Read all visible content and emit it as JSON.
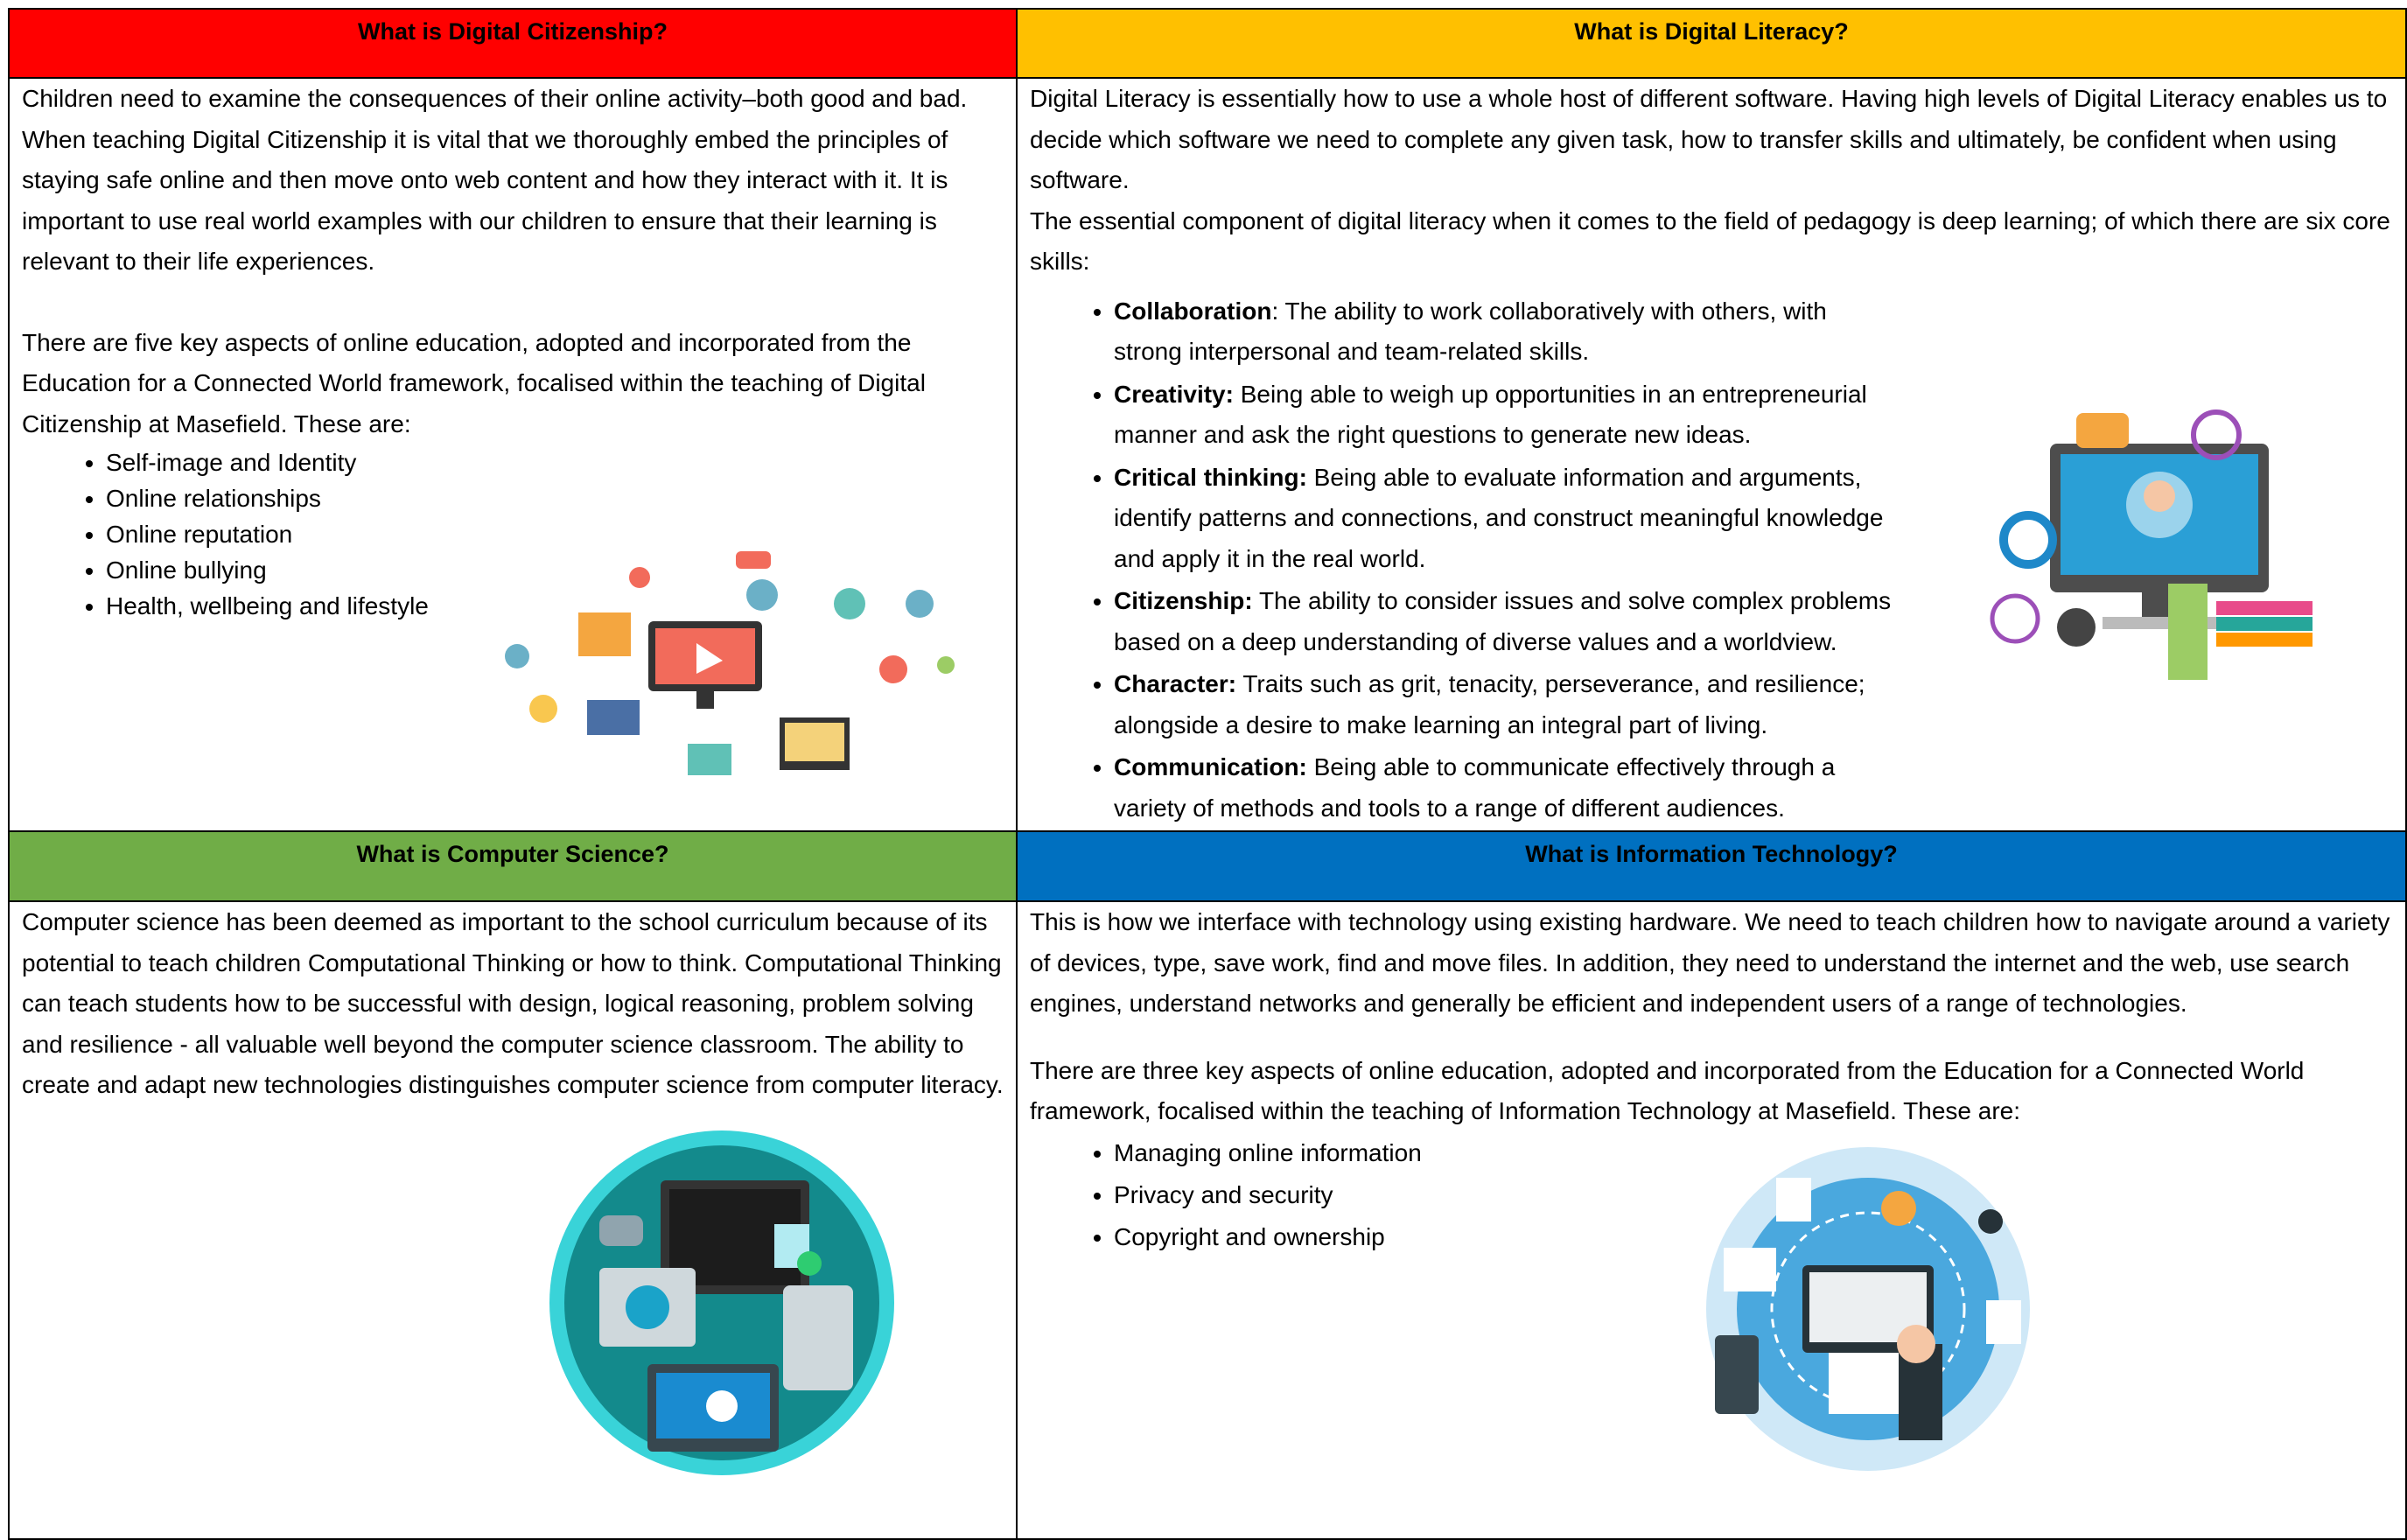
{
  "panels": [
    {
      "title": "What is Digital Citizenship?",
      "paragraphs": [
        "Children need to examine the consequences of their online activity–both good and bad. When teaching Digital Citizenship it is vital that we thoroughly embed the principles of staying safe online and then move onto web content and how they interact with it.  It is important to use real world examples with our children to ensure that their learning is relevant to their life experiences.",
        "There are five key aspects of online education, adopted and incorporated from the Education for a Connected World framework, focalised within the teaching of Digital Citizenship at Masefield. These are:"
      ],
      "list": [
        "Self-image and Identity",
        "Online relationships",
        "Online reputation",
        "Online bullying",
        "Health, wellbeing and lifestyle"
      ]
    },
    {
      "title": "What is Digital Literacy?",
      "paragraphs": [
        "Digital Literacy is essentially how to use a whole host of different software. Having high levels of Digital Literacy enables us to decide which software we need to complete any given task, how to transfer skills and ultimately, be confident when using software.",
        "The essential component of digital literacy when it comes to the field of pedagogy is deep learning; of which there are six core skills:"
      ],
      "list": [
        {
          "term": "Collaboration",
          "text": ": The ability to work collaboratively with others, with strong interpersonal and team-related skills."
        },
        {
          "term": "Creativity:",
          "text": " Being able to weigh up opportunities in an entrepreneurial manner and ask the right questions to generate new ideas."
        },
        {
          "term": "Critical thinking:",
          "text": " Being able to evaluate information and arguments, identify patterns and connections, and construct meaningful knowledge and apply it in the real world."
        },
        {
          "term": "Citizenship:",
          "text": " The ability to consider issues and solve complex problems based on a deep understanding of diverse values and a worldview."
        },
        {
          "term": "Character:",
          "text": " Traits such as grit, tenacity, perseverance, and resilience; alongside a desire to make learning an integral part of living."
        },
        {
          "term": "Communication:",
          "text": " Being able to communicate effectively through a variety of methods and tools to a range of different audiences."
        }
      ]
    },
    {
      "title": "What is Computer Science?",
      "paragraphs": [
        "Computer science has been deemed as important to the school curriculum because of its potential to teach children Computational Thinking or how to think. Computational Thinking can teach students how to be successful with design, logical reasoning, problem solving and resilience - all valuable well beyond the computer science classroom. The ability to create and adapt new technologies distinguishes computer science from computer literacy."
      ],
      "list": []
    },
    {
      "title": "What is Information Technology?",
      "paragraphs": [
        "This is how we interface with technology using existing hardware. We need to teach children how to navigate around a variety of devices, type, save work, find and move files. In addition, they need to understand the internet and the web, use search engines, understand networks and generally be efficient and independent users of a range of technologies.",
        "There are three key aspects of online education, adopted and incorporated from the Education for a Connected World framework, focalised within the teaching of Information Technology at Masefield. These are:"
      ],
      "list": [
        "Managing online information",
        "Privacy and security",
        "Copyright and ownership"
      ]
    }
  ]
}
